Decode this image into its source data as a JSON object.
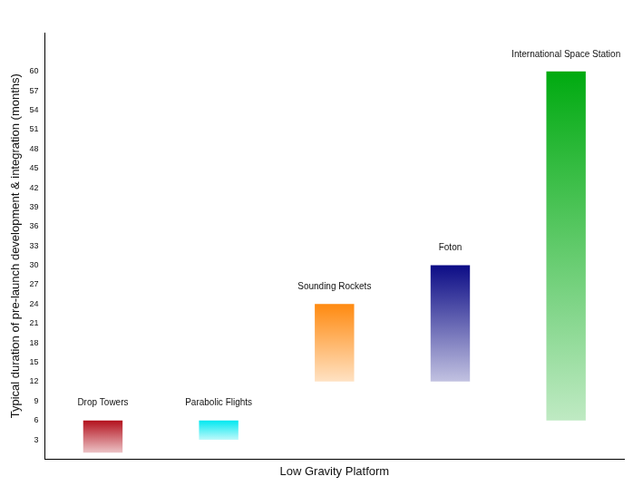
{
  "chart_data": {
    "type": "bar",
    "x_label": "Low Gravity Platform",
    "y_label": "Typical duration of pre-launch development & integration (months)",
    "categories": [
      "Drop Towers",
      "Parabolic Flights",
      "Sounding Rockets",
      "Foton",
      "International Space Station"
    ],
    "values": [
      [
        1,
        6
      ],
      [
        3,
        6
      ],
      [
        12,
        24
      ],
      [
        12,
        30
      ],
      [
        6,
        60
      ]
    ],
    "colors": [
      "#b3101c",
      "#00e8f0",
      "#ff8a10",
      "#0c0c86",
      "#00aa10"
    ],
    "ylim": [
      0,
      66
    ],
    "yticks": [
      3,
      6,
      9,
      12,
      15,
      18,
      21,
      24,
      27,
      30,
      33,
      36,
      39,
      42,
      45,
      48,
      51,
      54,
      57,
      60
    ],
    "grid": false,
    "tick_labels": "y"
  }
}
